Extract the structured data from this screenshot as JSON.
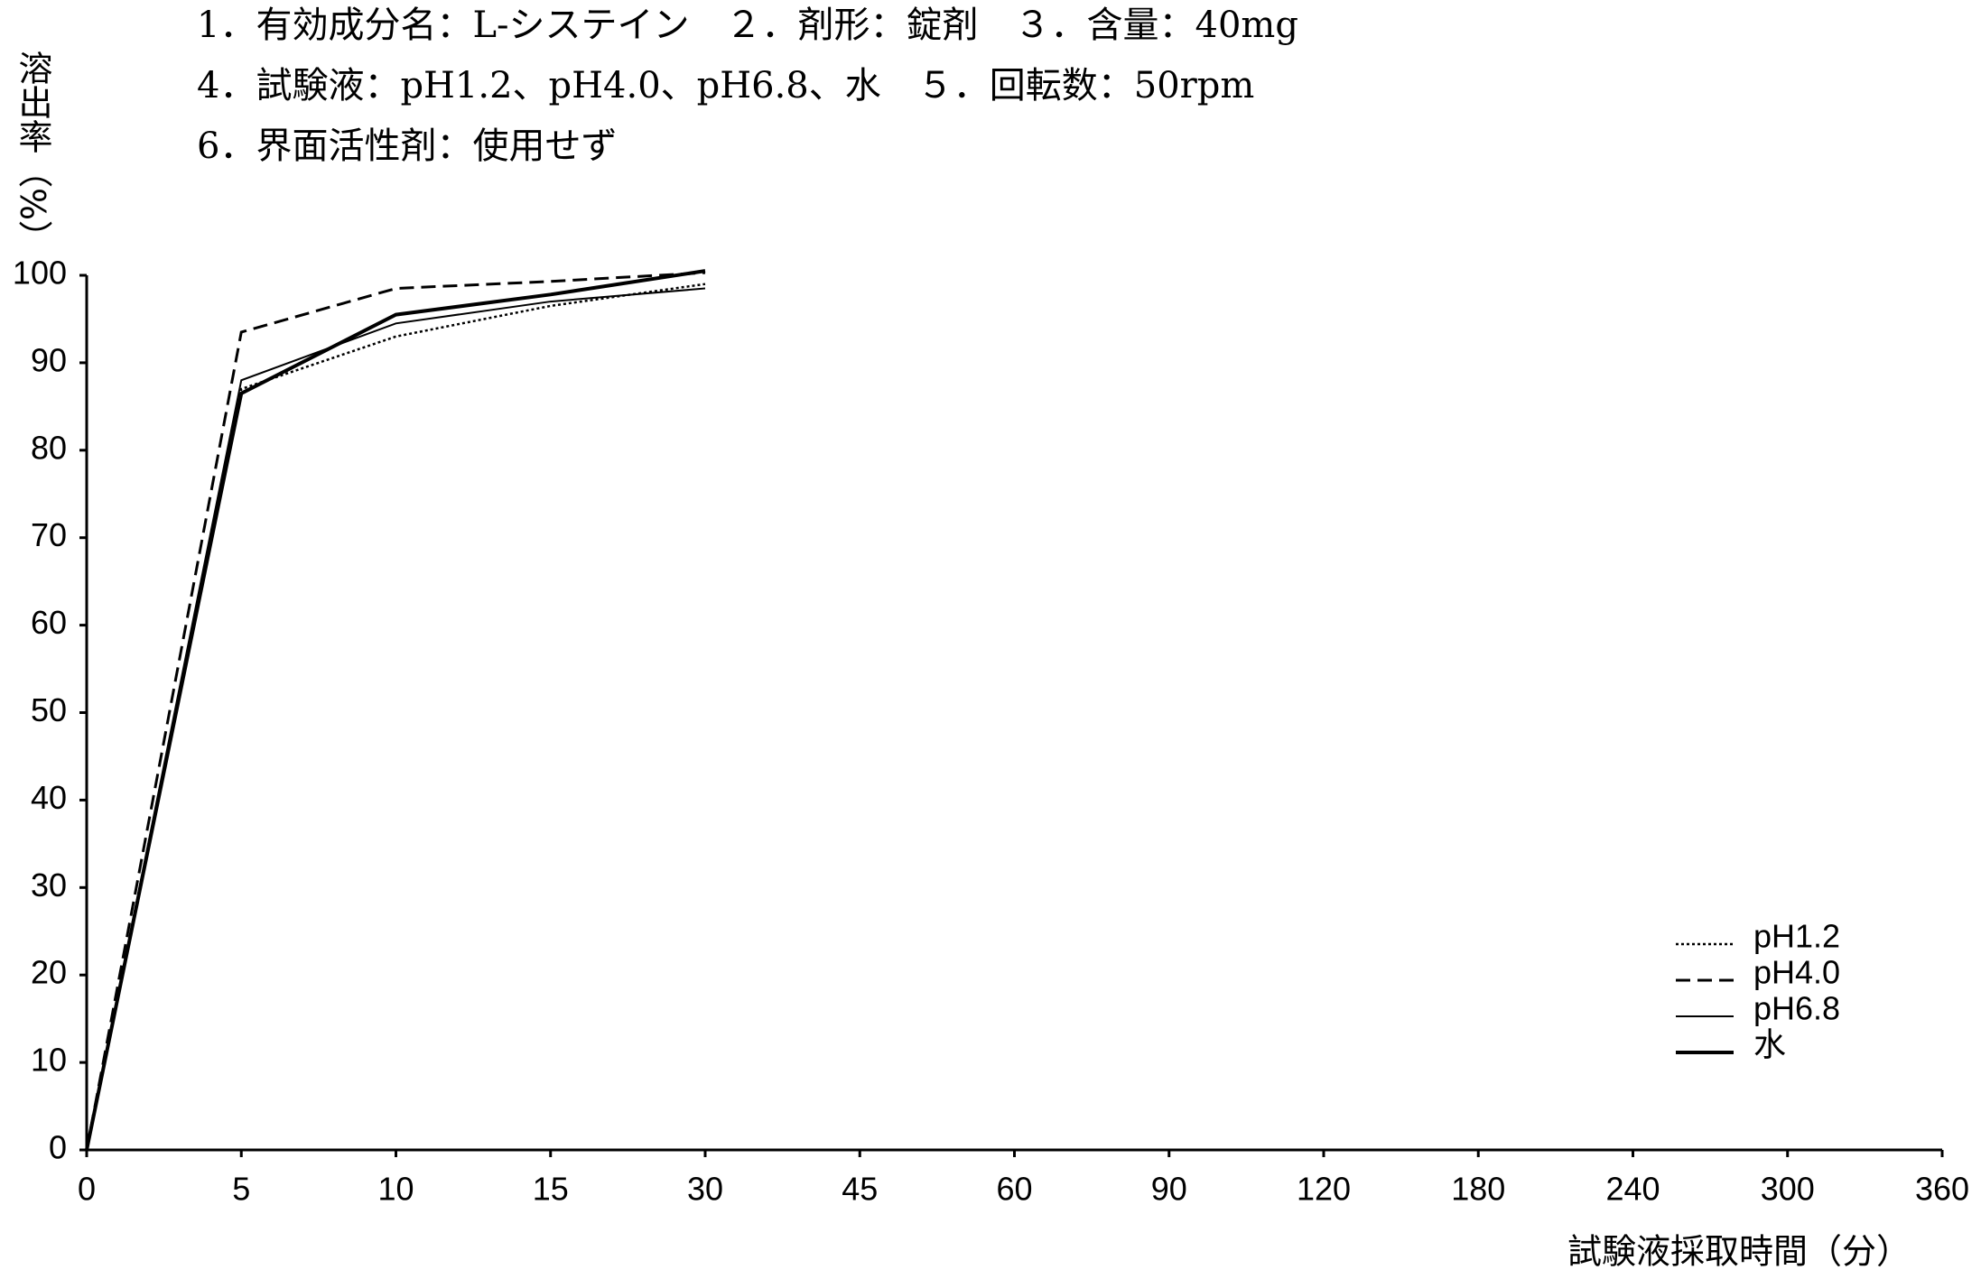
{
  "chart_data": {
    "type": "line",
    "title_lines": [
      "1．有効成分名：L-システイン　２．剤形：錠剤　３．含量：40mg",
      "4．試験液：pH1.2、pH4.0、pH6.8、水　５．回転数：50rpm",
      "6．界面活性剤：使用せず"
    ],
    "y_label": "溶出率（%）",
    "x_label": "試験液採取時間（分）",
    "categories": [
      0,
      5,
      10,
      15,
      30,
      45,
      60,
      90,
      120,
      180,
      240,
      300,
      360
    ],
    "ylim": [
      0,
      100
    ],
    "yticks": [
      0,
      10,
      20,
      30,
      40,
      50,
      60,
      70,
      80,
      90,
      100
    ],
    "legend": "lower right",
    "series": [
      {
        "name": "pH1.2",
        "color": "#000000",
        "dash": "dotted",
        "values": [
          0,
          87,
          93,
          96.5,
          99,
          null,
          null,
          null,
          null,
          null,
          null,
          null,
          null
        ]
      },
      {
        "name": "pH4.0",
        "color": "#000000",
        "dash": "dashed",
        "values": [
          0,
          93.5,
          98.5,
          99.3,
          100.3,
          null,
          null,
          null,
          null,
          null,
          null,
          null,
          null
        ]
      },
      {
        "name": "pH6.8",
        "color": "#000000",
        "dash": "thin",
        "values": [
          0,
          88,
          94.5,
          97,
          98.5,
          null,
          null,
          null,
          null,
          null,
          null,
          null,
          null
        ]
      },
      {
        "name": "水",
        "color": "#000000",
        "dash": "solid",
        "values": [
          0,
          86.5,
          95.5,
          97.8,
          100.5,
          null,
          null,
          null,
          null,
          null,
          null,
          null,
          null
        ]
      }
    ]
  }
}
